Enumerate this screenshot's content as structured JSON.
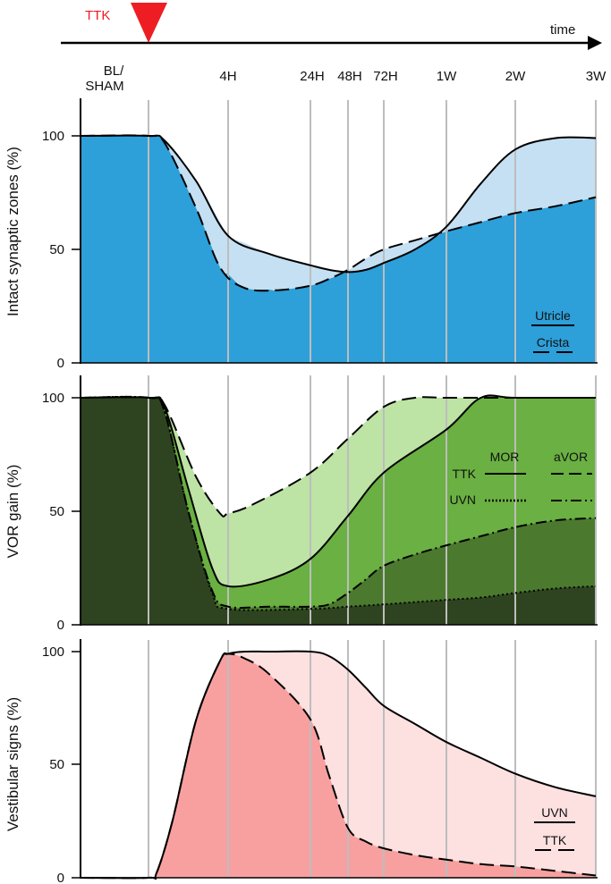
{
  "timeline": {
    "event_label": "TTK",
    "axis_label": "time",
    "points": [
      "BL/",
      "SHAM",
      "4H",
      "24H",
      "48H",
      "72H",
      "1W",
      "2W",
      "3W"
    ]
  },
  "colors": {
    "event_red": "#ee1d23",
    "gridline": "#bdbdbd",
    "utricle_fill_light": "#c5e0f2",
    "utricle_fill_dark": "#2d9fd9",
    "vor_light": "#bde3a5",
    "vor_mid": "#6ab042",
    "vor_dark": "#4b7a2e",
    "vor_darkest": "#2e4420",
    "vestibular_light": "#fde0e0",
    "vestibular_dark": "#f8a0a0"
  },
  "chart_data": [
    {
      "id": "synaptic",
      "type": "area",
      "ylabel": "Intact synaptic zones (%)",
      "yticks": [
        "0",
        "50",
        "100"
      ],
      "ylim": [
        0,
        100
      ],
      "x_categories": [
        "BL/SHAM",
        "4H",
        "24H",
        "48H",
        "72H",
        "1W",
        "2W",
        "3W"
      ],
      "series": [
        {
          "name": "Utricle",
          "style": "solid",
          "x": [
            -1.5,
            0,
            0.2,
            0.6,
            1,
            1.5,
            2,
            2.5,
            3,
            3.5,
            4,
            4.5,
            5,
            5.5,
            6,
            6.5,
            7
          ],
          "values": [
            100,
            100,
            98,
            80,
            56,
            48,
            43,
            41,
            40,
            41,
            44,
            50,
            60,
            79,
            94,
            99,
            99
          ]
        },
        {
          "name": "Crista",
          "style": "dashed",
          "x": [
            -1.5,
            0,
            0.2,
            0.6,
            0.9,
            1.2,
            1.6,
            2,
            2.5,
            3,
            3.5,
            4,
            4.5,
            5,
            5.5,
            6,
            6.5,
            7
          ],
          "values": [
            100,
            100,
            97,
            68,
            42,
            33,
            32,
            34,
            37,
            41,
            46,
            50,
            54,
            58,
            62,
            66,
            69,
            73
          ]
        }
      ],
      "legend": [
        "Utricle",
        "Crista"
      ]
    },
    {
      "id": "vor",
      "type": "area",
      "ylabel": "VOR gain (%)",
      "yticks": [
        "0",
        "50",
        "100"
      ],
      "ylim": [
        0,
        100
      ],
      "series": [
        {
          "name": "TTK aVOR",
          "style": "dashed",
          "x": [
            -1.5,
            0,
            0.2,
            0.6,
            0.9,
            1,
            1.3,
            2,
            3,
            4,
            4.5,
            5,
            6,
            7
          ],
          "values": [
            100,
            100,
            97,
            65,
            49,
            49,
            53,
            67,
            82,
            96,
            100,
            100,
            100,
            100
          ]
        },
        {
          "name": "TTK MOR",
          "style": "solid",
          "x": [
            -1.5,
            0,
            0.2,
            0.5,
            0.8,
            1,
            1.5,
            2,
            3,
            4,
            5,
            5.5,
            6,
            7
          ],
          "values": [
            100,
            100,
            96,
            60,
            25,
            17,
            20,
            29,
            48,
            67,
            86,
            100,
            100,
            100
          ]
        },
        {
          "name": "UVN aVOR",
          "style": "dash-dot",
          "x": [
            -1.5,
            0,
            0.2,
            0.5,
            0.8,
            1,
            1.5,
            2,
            2.5,
            3,
            3.5,
            4,
            4.5,
            5,
            5.5,
            6,
            6.5,
            7
          ],
          "values": [
            100,
            100,
            94,
            50,
            15,
            8,
            8,
            8,
            9,
            14,
            20,
            26,
            31,
            35,
            39,
            43,
            46,
            47
          ]
        },
        {
          "name": "UVN MOR",
          "style": "dotted",
          "x": [
            -1.5,
            0,
            0.2,
            0.5,
            0.8,
            1,
            2,
            3,
            4,
            5,
            5.5,
            6,
            6.5,
            7
          ],
          "values": [
            100,
            100,
            94,
            50,
            14,
            7,
            7,
            8,
            9,
            11,
            12,
            14,
            16,
            17
          ]
        }
      ],
      "legend": {
        "columns": [
          "MOR",
          "aVOR"
        ],
        "rows": [
          "TTK",
          "UVN"
        ]
      }
    },
    {
      "id": "vestibular",
      "type": "area",
      "ylabel": "Vestibular signs (%)",
      "yticks": [
        "0",
        "50",
        "100"
      ],
      "ylim": [
        0,
        100
      ],
      "series": [
        {
          "name": "UVN",
          "style": "solid",
          "x": [
            -1.5,
            0,
            0.1,
            0.3,
            0.6,
            0.9,
            1,
            1.2,
            1.5,
            2,
            2.5,
            3,
            3.5,
            4,
            4.5,
            5,
            5.5,
            6,
            6.5,
            7
          ],
          "values": [
            0,
            0,
            2,
            25,
            70,
            96,
            99,
            100,
            100,
            100,
            98,
            92,
            84,
            76,
            68,
            60,
            53,
            46,
            40,
            36
          ]
        },
        {
          "name": "TTK",
          "style": "dashed",
          "x": [
            -1.5,
            0,
            0.1,
            0.3,
            0.6,
            0.9,
            1,
            1.2,
            1.5,
            2,
            2.5,
            3,
            3.5,
            4,
            4.5,
            5,
            5.5,
            6,
            6.5,
            7
          ],
          "values": [
            0,
            0,
            2,
            25,
            70,
            96,
            99,
            97,
            90,
            70,
            45,
            22,
            16,
            13,
            10,
            8,
            6,
            5,
            3,
            1
          ]
        }
      ],
      "legend": [
        "UVN",
        "TTK"
      ]
    }
  ]
}
